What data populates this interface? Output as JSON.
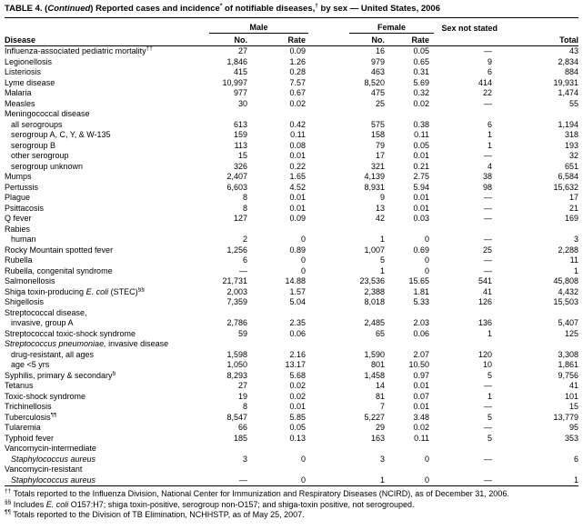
{
  "title": "TABLE 4. (_Continued_) Reported cases and incidence^*^ of notifiable diseases,^†^ by sex — United States, 2006",
  "header": {
    "disease": "Disease",
    "male": "Male",
    "female": "Female",
    "sex_not_stated": "Sex not stated",
    "no": "No.",
    "rate": "Rate",
    "total": "Total"
  },
  "rows": [
    {
      "label": "Influenza-associated pediatric mortality^††^",
      "v": [
        "27",
        "0.09",
        "16",
        "0.05",
        "—",
        "43"
      ]
    },
    {
      "label": "Legionellosis",
      "v": [
        "1,846",
        "1.26",
        "979",
        "0.65",
        "9",
        "2,834"
      ]
    },
    {
      "label": "Listeriosis",
      "v": [
        "415",
        "0.28",
        "463",
        "0.31",
        "6",
        "884"
      ]
    },
    {
      "label": "Lyme disease",
      "v": [
        "10,997",
        "7.57",
        "8,520",
        "5.69",
        "414",
        "19,931"
      ]
    },
    {
      "label": "Malaria",
      "v": [
        "977",
        "0.67",
        "475",
        "0.32",
        "22",
        "1,474"
      ]
    },
    {
      "label": "Measles",
      "v": [
        "30",
        "0.02",
        "25",
        "0.02",
        "—",
        "55"
      ]
    },
    {
      "label": "Meningococcal disease"
    },
    {
      "label": "all serogroups",
      "indent": 1,
      "v": [
        "613",
        "0.42",
        "575",
        "0.38",
        "6",
        "1,194"
      ]
    },
    {
      "label": "serogroup A, C, Y, & W-135",
      "indent": 1,
      "v": [
        "159",
        "0.11",
        "158",
        "0.11",
        "1",
        "318"
      ]
    },
    {
      "label": "serogroup B",
      "indent": 1,
      "v": [
        "113",
        "0.08",
        "79",
        "0.05",
        "1",
        "193"
      ]
    },
    {
      "label": "other serogroup",
      "indent": 1,
      "v": [
        "15",
        "0.01",
        "17",
        "0.01",
        "—",
        "32"
      ]
    },
    {
      "label": "serogroup unknown",
      "indent": 1,
      "v": [
        "326",
        "0.22",
        "321",
        "0.21",
        "4",
        "651"
      ]
    },
    {
      "label": "Mumps",
      "v": [
        "2,407",
        "1.65",
        "4,139",
        "2.75",
        "38",
        "6,584"
      ]
    },
    {
      "label": "Pertussis",
      "v": [
        "6,603",
        "4.52",
        "8,931",
        "5.94",
        "98",
        "15,632"
      ]
    },
    {
      "label": "Plague",
      "v": [
        "8",
        "0.01",
        "9",
        "0.01",
        "—",
        "17"
      ]
    },
    {
      "label": "Psittacosis",
      "v": [
        "8",
        "0.01",
        "13",
        "0.01",
        "—",
        "21"
      ]
    },
    {
      "label": "Q fever",
      "v": [
        "127",
        "0.09",
        "42",
        "0.03",
        "—",
        "169"
      ]
    },
    {
      "label": "Rabies"
    },
    {
      "label": "human",
      "indent": 1,
      "v": [
        "2",
        "0",
        "1",
        "0",
        "—",
        "3"
      ]
    },
    {
      "label": "Rocky Mountain spotted fever",
      "v": [
        "1,256",
        "0.89",
        "1,007",
        "0.69",
        "25",
        "2,288"
      ]
    },
    {
      "label": "Rubella",
      "v": [
        "6",
        "0",
        "5",
        "0",
        "—",
        "11"
      ]
    },
    {
      "label": "Rubella, congenital syndrome",
      "v": [
        "—",
        "0",
        "1",
        "0",
        "—",
        "1"
      ]
    },
    {
      "label": "Salmonellosis",
      "v": [
        "21,731",
        "14.88",
        "23,536",
        "15.65",
        "541",
        "45,808"
      ]
    },
    {
      "label": "Shiga toxin-producing _E. coli_ (STEC)^§§^",
      "v": [
        "2,003",
        "1.57",
        "2,388",
        "1.81",
        "41",
        "4,432"
      ]
    },
    {
      "label": "Shigellosis",
      "v": [
        "7,359",
        "5.04",
        "8,018",
        "5.33",
        "126",
        "15,503"
      ]
    },
    {
      "label": "Streptococcal disease,"
    },
    {
      "label": "invasive, group A",
      "indent": 1,
      "v": [
        "2,786",
        "2.35",
        "2,485",
        "2.03",
        "136",
        "5,407"
      ]
    },
    {
      "label": "Streptococcal toxic-shock syndrome",
      "v": [
        "59",
        "0.06",
        "65",
        "0.06",
        "1",
        "125"
      ]
    },
    {
      "label": "_Streptococcus pneumoniae,_ invasive disease"
    },
    {
      "label": "drug-resistant, all ages",
      "indent": 1,
      "v": [
        "1,598",
        "2.16",
        "1,590",
        "2.07",
        "120",
        "3,308"
      ]
    },
    {
      "label": "age <5 yrs",
      "indent": 1,
      "v": [
        "1,050",
        "13.17",
        "801",
        "10.50",
        "10",
        "1,861"
      ]
    },
    {
      "label": "Syphilis, primary & secondary^§^",
      "v": [
        "8,293",
        "5.68",
        "1,458",
        "0.97",
        "5",
        "9,756"
      ]
    },
    {
      "label": "Tetanus",
      "v": [
        "27",
        "0.02",
        "14",
        "0.01",
        "—",
        "41"
      ]
    },
    {
      "label": "Toxic-shock syndrome",
      "v": [
        "19",
        "0.02",
        "81",
        "0.07",
        "1",
        "101"
      ]
    },
    {
      "label": "Trichinellosis",
      "v": [
        "8",
        "0.01",
        "7",
        "0.01",
        "—",
        "15"
      ]
    },
    {
      "label": "Tuberculosis^¶¶^",
      "v": [
        "8,547",
        "5.85",
        "5,227",
        "3.48",
        "5",
        "13,779"
      ]
    },
    {
      "label": "Tularemia",
      "v": [
        "66",
        "0.05",
        "29",
        "0.02",
        "—",
        "95"
      ]
    },
    {
      "label": "Typhoid fever",
      "v": [
        "185",
        "0.13",
        "163",
        "0.11",
        "5",
        "353"
      ]
    },
    {
      "label": "Vancomycin-intermediate"
    },
    {
      "label": "_Staphylococcus aureus_",
      "indent": 1,
      "v": [
        "3",
        "0",
        "3",
        "0",
        "—",
        "6"
      ]
    },
    {
      "label": "Vancomycin-resistant"
    },
    {
      "label": "_Staphylococcus aureus_",
      "indent": 1,
      "v": [
        "—",
        "0",
        "1",
        "0",
        "—",
        "1"
      ]
    }
  ],
  "footnotes": [
    "^††^ Totals reported to the Influenza Division, National Center for Immunization and Respiratory Diseases (NCIRD), as of December 31, 2006.",
    "^§§^ Includes _E. coli_ O157:H7; shiga toxin-positive, serogroup non-O157; and shiga-toxin positive, not serogrouped.",
    "^¶¶^ Totals reported to the Division of TB Elimination, NCHHSTP, as of May 25, 2007."
  ]
}
